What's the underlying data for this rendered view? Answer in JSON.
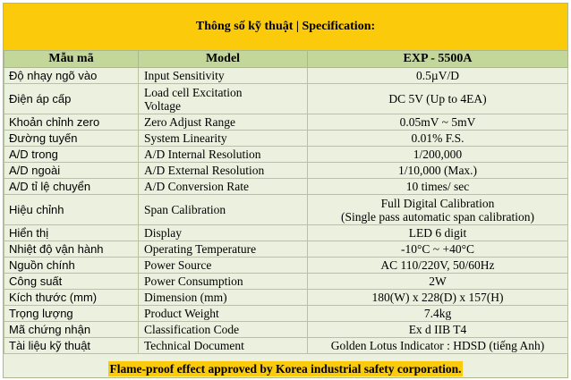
{
  "title": "Thông số kỹ thuật | Specification:",
  "headers": {
    "vi": "Mẫu mã",
    "en": "Model",
    "value": "EXP - 5500A"
  },
  "rows": [
    {
      "vi": "Độ nhạy ngõ vào",
      "en": "Input Sensitivity",
      "value": "0.5µV/D"
    },
    {
      "vi": "Điện áp cấp",
      "en": [
        "Load cell Excitation",
        "Voltage"
      ],
      "value": "DC 5V (Up to 4EA)"
    },
    {
      "vi": "Khoản chỉnh zero",
      "en": "Zero Adjust Range",
      "value": "0.05mV ~ 5mV"
    },
    {
      "vi": "Đường tuyến",
      "en": "System Linearity",
      "value": "0.01% F.S."
    },
    {
      "vi": "A/D trong",
      "en": "A/D Internal Resolution",
      "value": "1/200,000"
    },
    {
      "vi": "A/D ngoài",
      "en": "A/D External Resolution",
      "value": "1/10,000 (Max.)"
    },
    {
      "vi": "A/D tỉ lệ chuyển",
      "en": "A/D Conversion Rate",
      "value": "10 times/ sec"
    },
    {
      "vi": "Hiệu chỉnh",
      "en": "Span Calibration",
      "value": [
        "Full Digital Calibration",
        "(Single pass automatic span calibration)"
      ]
    },
    {
      "vi": "Hiển thị",
      "en": "Display",
      "value": "LED 6 digit"
    },
    {
      "vi": "Nhiệt độ vận hành",
      "en": "Operating Temperature",
      "value": "-10°C ~ +40°C"
    },
    {
      "vi": "Nguồn chính",
      "en": "Power Source",
      "value": "AC 110/220V, 50/60Hz"
    },
    {
      "vi": "Công suất",
      "en": "Power Consumption",
      "value": "2W"
    },
    {
      "vi": "Kích thước (mm)",
      "en": "Dimension (mm)",
      "value": "180(W) x 228(D) x 157(H)"
    },
    {
      "vi": "Trọng lượng",
      "en": "Product Weight",
      "value": "7.4kg"
    },
    {
      "vi": "Mã chứng nhận",
      "en": "Classification Code",
      "value": "Ex d IIB T4"
    },
    {
      "vi": "Tài liệu kỹ thuật",
      "en": "Technical Document",
      "value": "Golden Lotus Indicator : HDSD (tiếng Anh)"
    }
  ],
  "footer": "Flame-proof effect approved by Korea industrial safety corporation."
}
